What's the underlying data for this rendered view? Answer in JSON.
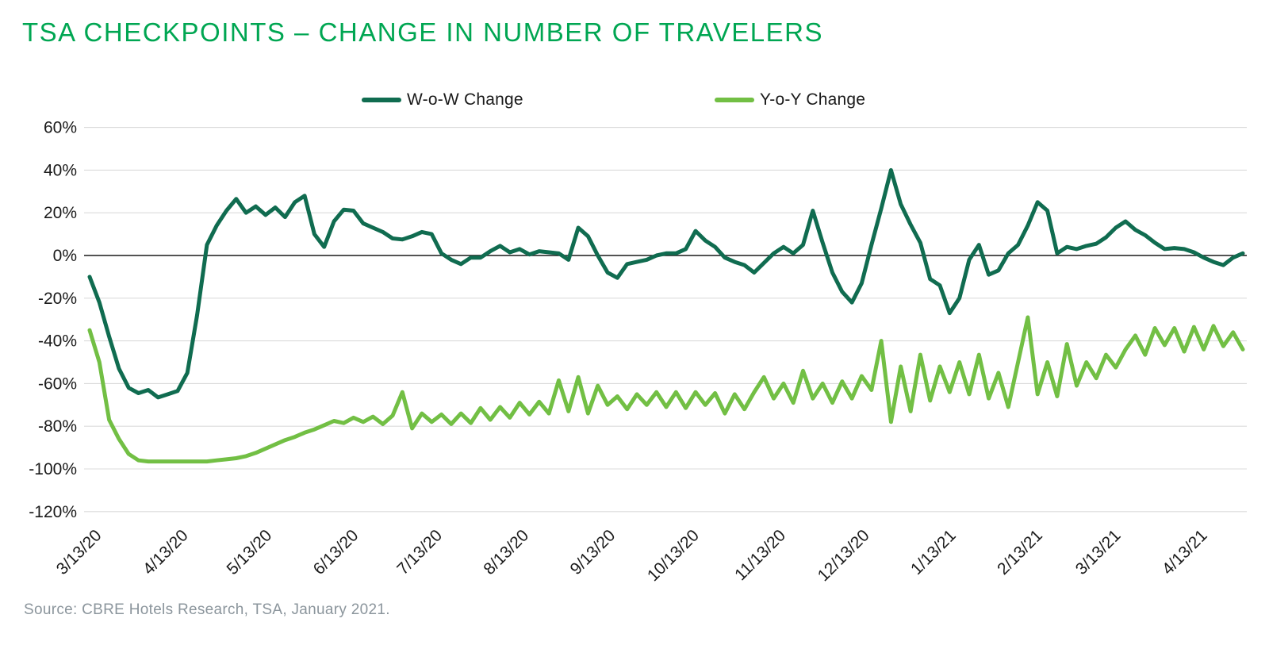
{
  "title": "TSA CHECKPOINTS – CHANGE IN NUMBER OF TRAVELERS",
  "title_color": "#00A652",
  "source": "Source: CBRE Hotels Research, TSA, January 2021.",
  "colors": {
    "grid": "#DBDBDB",
    "zero_line": "#1A1A1A",
    "axis_text": "#1A1A1A",
    "source_text": "#8B959C"
  },
  "chart_data": {
    "type": "line",
    "title": "TSA CHECKPOINTS – CHANGE IN NUMBER OF TRAVELERS",
    "xlabel": "",
    "ylabel": "",
    "x_unit": "days since 3/13/2020 (values sampled every 3.5 days)",
    "x_start_day": 0,
    "x_step_days": 3.5,
    "x_tick_days": [
      0,
      31,
      61,
      92,
      122,
      153,
      184,
      214,
      245,
      275,
      306,
      337,
      365,
      396
    ],
    "x_tick_labels": [
      "3/13/20",
      "4/13/20",
      "5/13/20",
      "6/13/20",
      "7/13/20",
      "8/13/20",
      "9/13/20",
      "10/13/20",
      "11/13/20",
      "12/13/20",
      "1/13/21",
      "2/13/21",
      "3/13/21",
      "4/13/21"
    ],
    "y_ticks": [
      60,
      40,
      20,
      0,
      -20,
      -40,
      -60,
      -80,
      -100,
      -120
    ],
    "y_tick_suffix": "%",
    "ylim": [
      -120,
      60
    ],
    "grid": true,
    "zero_line": true,
    "legend_position": "top",
    "series": [
      {
        "name": "W-o-W Change",
        "color": "#106C50",
        "values": [
          -10,
          -22,
          -38,
          -53,
          -62,
          -64.5,
          -63,
          -66.5,
          -65,
          -63.5,
          -55,
          -28,
          5,
          14,
          21,
          26.5,
          20,
          23,
          19,
          22.5,
          18,
          25,
          28,
          10,
          4,
          16,
          21.5,
          21,
          15,
          13,
          11,
          8,
          7.5,
          9,
          11,
          10,
          1,
          -2,
          -4,
          -1,
          -1,
          2,
          4.5,
          1.5,
          3,
          0.5,
          2,
          1.5,
          1,
          -2,
          13,
          9,
          0,
          -8,
          -10.5,
          -4,
          -3,
          -2,
          0,
          1,
          1,
          3,
          11.5,
          7,
          4,
          -1,
          -3,
          -4.5,
          -8,
          -3.5,
          1,
          4,
          1,
          5,
          21,
          6,
          -8,
          -17,
          -22,
          -13,
          5,
          22,
          40,
          24,
          14.5,
          6,
          -11,
          -14,
          -27,
          -20,
          -2,
          5,
          -9,
          -7,
          1,
          5,
          14,
          25,
          21,
          1,
          4,
          3,
          4.5,
          5.5,
          8.5,
          13,
          16,
          12,
          9.5,
          6,
          3,
          3.5,
          3,
          1.5,
          -1,
          -3,
          -4.5,
          -1,
          1
        ]
      },
      {
        "name": "Y-o-Y Change",
        "color": "#72BF44",
        "values": [
          -35,
          -50,
          -77,
          -86,
          -93,
          -96,
          -96.5,
          -96.5,
          -96.5,
          -96.5,
          -96.5,
          -96.5,
          -96.5,
          -96,
          -95.5,
          -95,
          -94,
          -92.5,
          -90.5,
          -88.5,
          -86.5,
          -85,
          -83,
          -81.5,
          -79.5,
          -77.5,
          -78.5,
          -76,
          -78,
          -75.5,
          -79,
          -75,
          -64,
          -81,
          -74,
          -78,
          -74.5,
          -79,
          -74,
          -78.5,
          -71.5,
          -77,
          -71,
          -76,
          -69,
          -74.5,
          -68.5,
          -74,
          -58.5,
          -73,
          -57,
          -74,
          -61,
          -70,
          -66,
          -72,
          -65,
          -70,
          -64,
          -71,
          -64,
          -71.5,
          -64,
          -70,
          -64.5,
          -74,
          -65,
          -72,
          -64,
          -57,
          -67,
          -60,
          -69,
          -54,
          -67,
          -60,
          -69,
          -59,
          -67,
          -56.5,
          -63,
          -40,
          -78,
          -52,
          -73,
          -46.5,
          -68,
          -52,
          -64,
          -50,
          -65,
          -46.5,
          -67,
          -55,
          -71,
          -50,
          -29,
          -65,
          -50,
          -66,
          -41.5,
          -61,
          -50,
          -57.5,
          -46.5,
          -52.5,
          -44,
          -37.5,
          -46.5,
          -34,
          -42,
          -34,
          -45,
          -33.5,
          -44,
          -33,
          -42.5,
          -36,
          -44
        ]
      }
    ]
  }
}
